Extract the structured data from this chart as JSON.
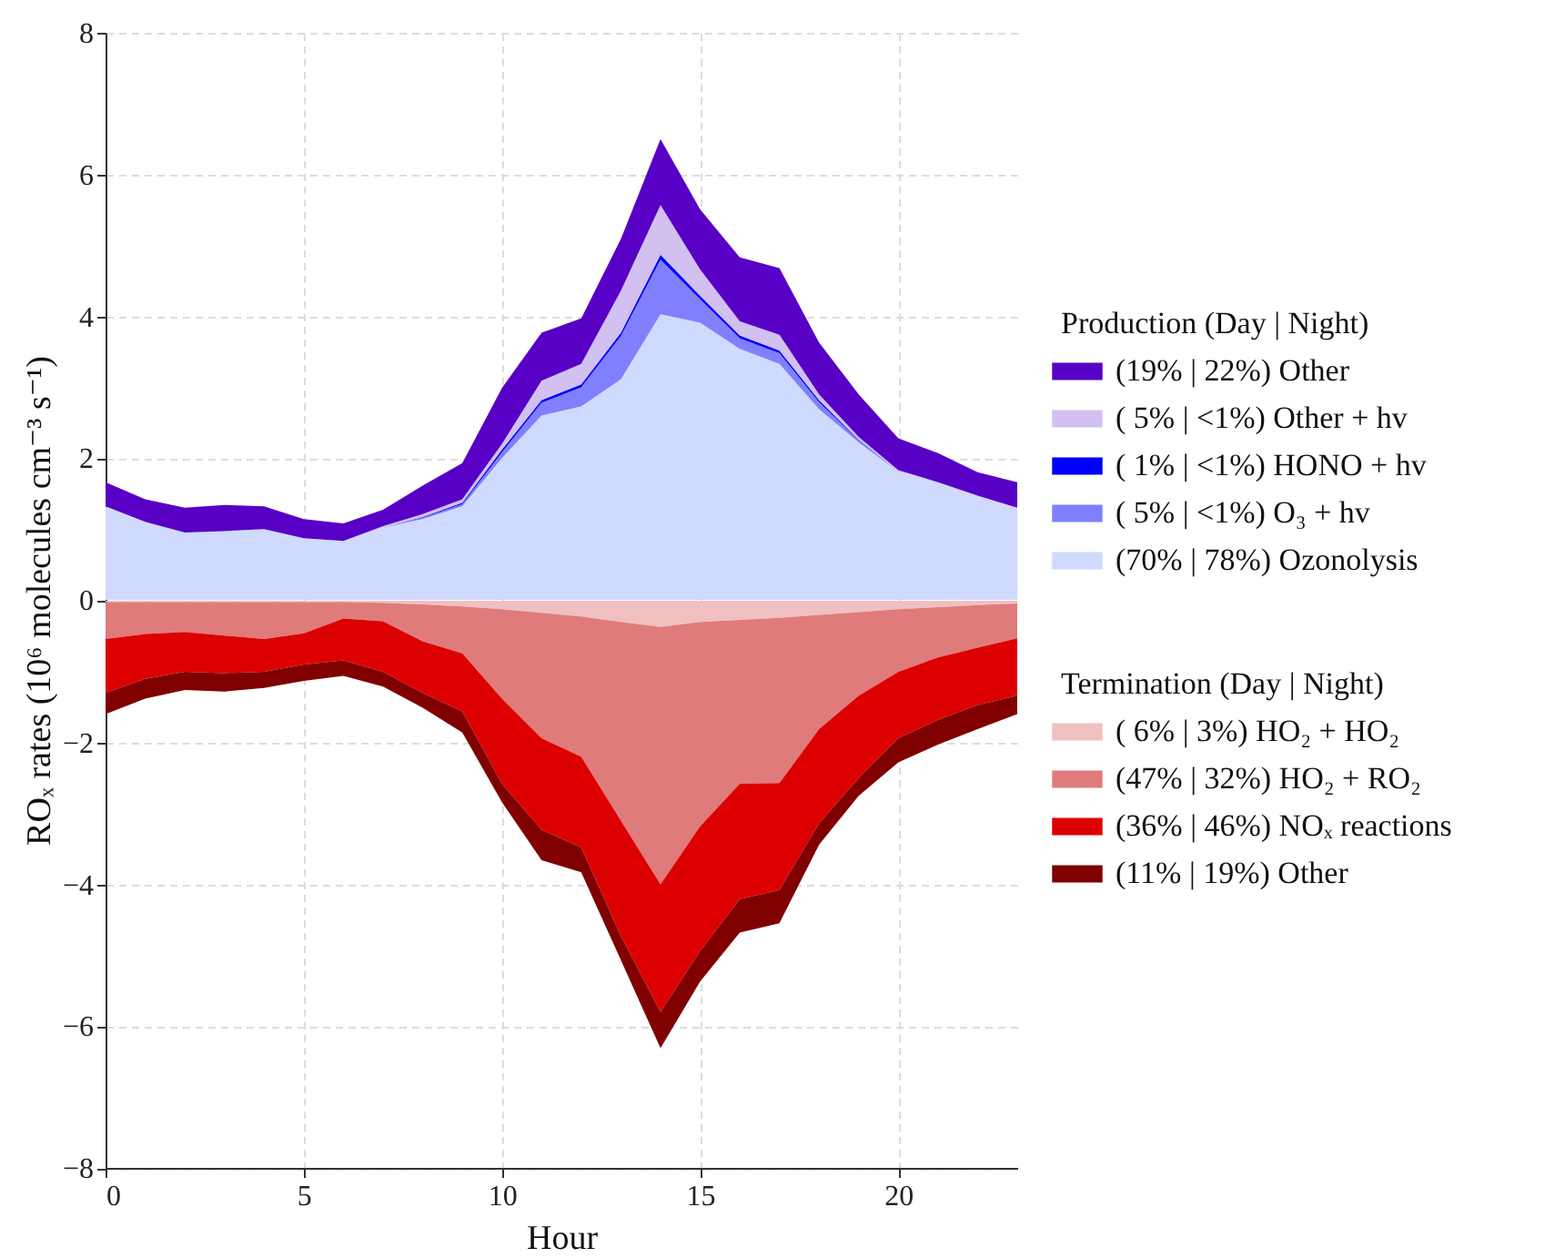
{
  "chart_data": [
    {
      "type": "area",
      "stacked": true,
      "ylabel": "ROₓ rates (10⁶ molecules cm⁻³ s⁻¹)",
      "legend_title": "Production (Day | Night)",
      "x": [
        0,
        1,
        2,
        3,
        4,
        5,
        6,
        7,
        8,
        9,
        10,
        11,
        12,
        13,
        14,
        15,
        16,
        17,
        18,
        19,
        20,
        21,
        22,
        23
      ],
      "series": [
        {
          "name": "(70% | 78%) Ozonolysis",
          "color": "#d0daff",
          "values": [
            1.32,
            1.1,
            0.95,
            0.97,
            1.0,
            0.87,
            0.83,
            1.02,
            1.14,
            1.32,
            2.0,
            2.6,
            2.73,
            3.11,
            4.03,
            3.91,
            3.54,
            3.33,
            2.69,
            2.22,
            1.81,
            1.66,
            1.47,
            1.3
          ]
        },
        {
          "name": "(  5% | <1%) O₃ + hv",
          "color": "#8080ff",
          "values": [
            0,
            0,
            0,
            0,
            0,
            0,
            0,
            0,
            0.02,
            0.03,
            0.08,
            0.18,
            0.27,
            0.61,
            0.77,
            0.33,
            0.15,
            0.15,
            0.1,
            0.03,
            0,
            0,
            0,
            0
          ]
        },
        {
          "name": "(  1% | <1%) HONO + hv",
          "color": "#0000ff",
          "values": [
            0,
            0,
            0,
            0,
            0,
            0,
            0,
            0,
            0.01,
            0.02,
            0.04,
            0.04,
            0.04,
            0.05,
            0.07,
            0.05,
            0.04,
            0.04,
            0.03,
            0.01,
            0,
            0,
            0,
            0
          ]
        },
        {
          "name": "(  5% | <1%) Other + hv",
          "color": "#d2c0f0",
          "values": [
            0,
            0,
            0,
            0,
            0,
            0,
            0,
            0.02,
            0.04,
            0.05,
            0.08,
            0.27,
            0.29,
            0.59,
            0.7,
            0.37,
            0.2,
            0.22,
            0.08,
            0.04,
            0.02,
            0,
            0,
            0
          ]
        },
        {
          "name": "(19% | 22%) Other",
          "color": "#5800c6",
          "values": [
            0.34,
            0.32,
            0.35,
            0.37,
            0.32,
            0.27,
            0.25,
            0.23,
            0.4,
            0.51,
            0.79,
            0.68,
            0.64,
            0.73,
            0.93,
            0.85,
            0.9,
            0.94,
            0.73,
            0.6,
            0.45,
            0.41,
            0.33,
            0.36
          ]
        }
      ],
      "xlim": [
        0,
        23
      ],
      "xticks": [
        0,
        5,
        10,
        15,
        20
      ],
      "ylim": [
        0,
        8
      ],
      "yticks": [
        0,
        2,
        4,
        6,
        8
      ],
      "tick_labels": "y",
      "grid": true,
      "legend": "right"
    },
    {
      "type": "area",
      "stacked": true,
      "xlabel": "Hour",
      "legend_title": "Termination (Day | Night)",
      "x": [
        0,
        1,
        2,
        3,
        4,
        5,
        6,
        7,
        8,
        9,
        10,
        11,
        12,
        13,
        14,
        15,
        16,
        17,
        18,
        19,
        20,
        21,
        22,
        23
      ],
      "series": [
        {
          "name": "(  6% |   3%) HO₂ + HO₂",
          "color": "#f0c0c0",
          "values": [
            -0.02,
            -0.02,
            -0.02,
            -0.02,
            -0.02,
            -0.02,
            -0.02,
            -0.03,
            -0.05,
            -0.08,
            -0.12,
            -0.17,
            -0.22,
            -0.3,
            -0.37,
            -0.3,
            -0.27,
            -0.24,
            -0.2,
            -0.16,
            -0.12,
            -0.09,
            -0.06,
            -0.04
          ]
        },
        {
          "name": "(47% | 32%) HO₂ + RO₂",
          "color": "#e07b7b",
          "values": [
            -0.52,
            -0.45,
            -0.42,
            -0.47,
            -0.52,
            -0.44,
            -0.23,
            -0.26,
            -0.52,
            -0.66,
            -1.26,
            -1.77,
            -1.98,
            -2.8,
            -3.63,
            -2.88,
            -2.31,
            -2.33,
            -1.61,
            -1.18,
            -0.88,
            -0.71,
            -0.6,
            -0.49
          ]
        },
        {
          "name": "(36% | 46%) NOₓ reactions",
          "color": "#dd0000",
          "values": [
            -0.76,
            -0.63,
            -0.56,
            -0.53,
            -0.46,
            -0.44,
            -0.59,
            -0.71,
            -0.73,
            -0.82,
            -1.2,
            -1.29,
            -1.28,
            -1.63,
            -1.8,
            -1.76,
            -1.63,
            -1.51,
            -1.33,
            -1.16,
            -0.94,
            -0.88,
            -0.81,
            -0.81
          ]
        },
        {
          "name": "(11% | 19%) Other",
          "color": "#800000",
          "values": [
            -0.3,
            -0.28,
            -0.26,
            -0.26,
            -0.23,
            -0.23,
            -0.22,
            -0.21,
            -0.21,
            -0.3,
            -0.26,
            -0.43,
            -0.35,
            -0.34,
            -0.51,
            -0.43,
            -0.47,
            -0.47,
            -0.3,
            -0.25,
            -0.34,
            -0.35,
            -0.34,
            -0.26
          ]
        }
      ],
      "xlim": [
        0,
        23
      ],
      "xticks": [
        0,
        5,
        10,
        15,
        20
      ],
      "ylim": [
        -8,
        0
      ],
      "yticks": [
        {
          "value": -8,
          "label": "−8"
        },
        {
          "value": -6,
          "label": "−6"
        },
        {
          "value": -4,
          "label": "−4"
        },
        {
          "value": -2,
          "label": "−2"
        }
      ],
      "grid": true,
      "legend": "right"
    }
  ]
}
